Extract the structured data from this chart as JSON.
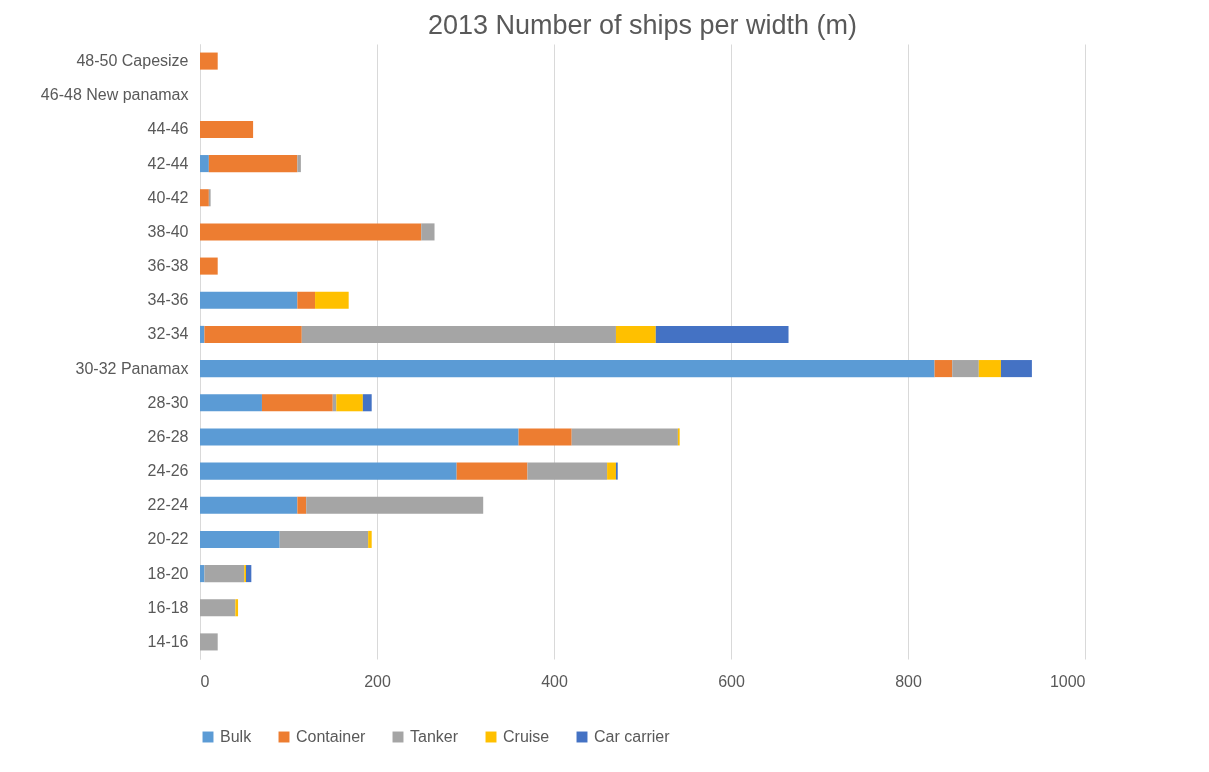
{
  "chart_data": {
    "type": "bar",
    "title": "2013 Number of ships per width (m)",
    "orientation": "horizontal",
    "stacked": true,
    "categories": [
      "48-50 Capesize",
      "46-48 New panamax",
      "44-46",
      "42-44",
      "40-42",
      "38-40",
      "36-38",
      "34-36",
      "32-34",
      "30-32 Panamax",
      "28-30",
      "26-28",
      "24-26",
      "22-24",
      "20-22",
      "18-20",
      "16-18",
      "14-16"
    ],
    "series": [
      {
        "name": "Bulk",
        "color": "#5b9bd5",
        "values": [
          null,
          null,
          null,
          10,
          null,
          null,
          null,
          110,
          5,
          830,
          70,
          360,
          290,
          110,
          90,
          5,
          null,
          null
        ]
      },
      {
        "name": "Container",
        "color": "#ed7d31",
        "values": [
          20,
          null,
          60,
          100,
          10,
          250,
          20,
          20,
          110,
          20,
          80,
          60,
          80,
          10,
          null,
          null,
          null,
          null
        ]
      },
      {
        "name": "Tanker",
        "color": "#a5a5a5",
        "values": [
          null,
          null,
          null,
          4,
          2,
          15,
          null,
          null,
          355,
          30,
          4,
          120,
          90,
          200,
          100,
          45,
          40,
          20
        ]
      },
      {
        "name": "Cruise",
        "color": "#ffc000",
        "values": [
          null,
          null,
          null,
          null,
          null,
          null,
          null,
          38,
          45,
          25,
          30,
          2,
          10,
          null,
          4,
          2,
          3,
          null
        ]
      },
      {
        "name": "Car carrier",
        "color": "#4472c4",
        "values": [
          null,
          null,
          null,
          null,
          null,
          null,
          null,
          null,
          150,
          35,
          10,
          null,
          2,
          null,
          null,
          6,
          null,
          null
        ]
      }
    ],
    "xlim": [
      0,
      1000
    ],
    "xticks": [
      0,
      200,
      400,
      600,
      800,
      1000
    ],
    "grid": "x",
    "legend": "bottom"
  }
}
